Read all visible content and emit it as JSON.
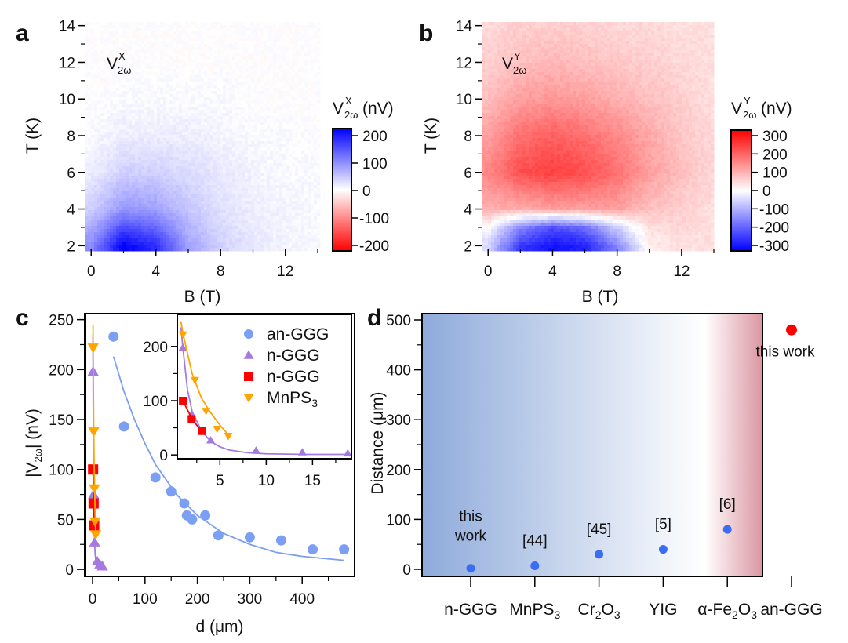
{
  "chart_data": [
    {
      "panel": "a",
      "type": "heatmap",
      "xlabel": "B (T)",
      "ylabel": "T (K)",
      "xlim": [
        -0.4,
        14
      ],
      "ylim": [
        1.8,
        14.2
      ],
      "xticks": [
        0,
        4,
        8,
        12
      ],
      "yticks": [
        2,
        4,
        6,
        8,
        10,
        12,
        14
      ],
      "annotation": {
        "base": "V",
        "sup": "X",
        "sub": "2ω"
      },
      "colorbar": {
        "base": "V",
        "sup": "X",
        "sub": "2ω",
        "unit": "(nV)",
        "ticks": [
          200,
          100,
          0,
          -100,
          -200
        ],
        "range": [
          -220,
          220
        ],
        "positive_color": "#0000ff",
        "negative_color": "#ff0000"
      },
      "grid": {
        "B": [
          0,
          2,
          4,
          6,
          8,
          10,
          12,
          14
        ],
        "T": [
          2,
          4,
          6,
          8,
          10,
          12,
          14
        ],
        "z": [
          [
            100,
            220,
            180,
            80,
            40,
            20,
            10,
            5
          ],
          [
            40,
            90,
            80,
            50,
            25,
            15,
            10,
            5
          ],
          [
            15,
            40,
            40,
            30,
            20,
            10,
            5,
            5
          ],
          [
            5,
            15,
            15,
            15,
            10,
            5,
            5,
            0
          ],
          [
            0,
            5,
            5,
            5,
            5,
            0,
            0,
            0
          ],
          [
            0,
            0,
            0,
            0,
            0,
            0,
            0,
            0
          ],
          [
            0,
            0,
            0,
            0,
            0,
            0,
            0,
            0
          ]
        ]
      }
    },
    {
      "panel": "b",
      "type": "heatmap",
      "xlabel": "B (T)",
      "ylabel": "T (K)",
      "xlim": [
        -0.4,
        14
      ],
      "ylim": [
        1.8,
        14.2
      ],
      "xticks": [
        0,
        4,
        8,
        12
      ],
      "yticks": [
        2,
        4,
        6,
        8,
        10,
        12,
        14
      ],
      "annotation": {
        "base": "V",
        "sup": "Y",
        "sub": "2ω"
      },
      "colorbar": {
        "base": "V",
        "sup": "Y",
        "sub": "2ω",
        "unit": "(nV)",
        "ticks": [
          300,
          200,
          100,
          0,
          -100,
          -200,
          -300
        ],
        "range": [
          -320,
          320
        ],
        "positive_color": "#ff0000",
        "negative_color": "#0000ff"
      },
      "grid": {
        "B": [
          0,
          2,
          4,
          6,
          8,
          10,
          12,
          14
        ],
        "T": [
          2,
          3,
          4,
          6,
          8,
          10,
          12,
          14
        ],
        "z": [
          [
            -50,
            -250,
            -300,
            -280,
            -150,
            20,
            40,
            40
          ],
          [
            0,
            -150,
            -220,
            -180,
            -60,
            40,
            50,
            40
          ],
          [
            100,
            100,
            120,
            120,
            120,
            80,
            60,
            40
          ],
          [
            150,
            220,
            240,
            220,
            180,
            120,
            80,
            50
          ],
          [
            120,
            180,
            200,
            180,
            150,
            110,
            70,
            50
          ],
          [
            80,
            120,
            130,
            120,
            100,
            80,
            60,
            40
          ],
          [
            60,
            80,
            90,
            80,
            70,
            60,
            50,
            40
          ],
          [
            50,
            60,
            60,
            60,
            50,
            50,
            40,
            40
          ]
        ]
      }
    },
    {
      "panel": "c",
      "type": "scatter",
      "xlabel": "d (μm)",
      "ylabel": {
        "pre": "|V",
        "sub": "2ω",
        "post": "| (nV)"
      },
      "xlim": [
        -15,
        500
      ],
      "ylim": [
        -7,
        256
      ],
      "xticks": [
        0,
        100,
        200,
        300,
        400
      ],
      "yticks": [
        0,
        50,
        100,
        150,
        200,
        250
      ],
      "legend_position": "inset top-right",
      "series": [
        {
          "name": "an-GGG",
          "marker": "circle",
          "color": "#7b9ff2",
          "x": [
            40,
            60,
            120,
            150,
            175,
            180,
            190,
            215,
            240,
            300,
            360,
            420,
            480
          ],
          "y": [
            233,
            143,
            92,
            78,
            66,
            54,
            50,
            54,
            34,
            32,
            29,
            20,
            20
          ],
          "fit": [
            [
              40,
              213
            ],
            [
              60,
              178
            ],
            [
              80,
              150
            ],
            [
              100,
              126
            ],
            [
              120,
              105
            ],
            [
              160,
              75
            ],
            [
              200,
              54
            ],
            [
              250,
              36
            ],
            [
              300,
              25
            ],
            [
              350,
              17
            ],
            [
              400,
              13
            ],
            [
              480,
              9
            ]
          ]
        },
        {
          "name": "n-GGG",
          "marker": "triangle-up",
          "color": "#a57ae0",
          "x": [
            1.0,
            1.95,
            4.0,
            8.9,
            13.9,
            18.8
          ],
          "y": [
            198,
            75,
            27,
            8,
            5,
            3
          ],
          "fit": [
            [
              0.8,
              235
            ],
            [
              1,
              198
            ],
            [
              1.5,
              120
            ],
            [
              2,
              80
            ],
            [
              3,
              45
            ],
            [
              4,
              25
            ],
            [
              5,
              15
            ],
            [
              6,
              9
            ],
            [
              8,
              4
            ],
            [
              10,
              2
            ],
            [
              14,
              1
            ],
            [
              19,
              1
            ]
          ]
        },
        {
          "name": "n-GGG",
          "marker": "square",
          "color": "#ff0000",
          "x": [
            1.0,
            1.95,
            3.05
          ],
          "y": [
            100,
            66,
            44
          ],
          "fit": [
            [
              1,
              100
            ],
            [
              2,
              66
            ],
            [
              3,
              44
            ]
          ]
        },
        {
          "name": "MnPS3",
          "marker": "triangle-down",
          "color": "#ffa500",
          "x": [
            1.0,
            2.3,
            3.5,
            4.7,
            5.9
          ],
          "y": [
            222,
            138,
            81,
            48,
            35
          ],
          "fit": [
            [
              0.8,
              245
            ],
            [
              1,
              225
            ],
            [
              2,
              150
            ],
            [
              3,
              105
            ],
            [
              4,
              78
            ],
            [
              5,
              55
            ],
            [
              6,
              35
            ]
          ]
        }
      ],
      "inset": {
        "xlim": [
          0.4,
          19.2
        ],
        "ylim": [
          -7,
          259
        ],
        "xticks": [
          5,
          10,
          15
        ],
        "yticks": [
          0,
          100,
          200
        ]
      }
    },
    {
      "panel": "d",
      "type": "scatter",
      "ylabel": "Distance (μm)",
      "ylim": [
        -10,
        517
      ],
      "yticks": [
        0,
        100,
        200,
        300,
        400,
        500
      ],
      "categories": [
        "n-GGG",
        "MnPS3",
        "Cr2O3",
        "YIG",
        "α-Fe2O3",
        "an-GGG"
      ],
      "values": [
        2,
        7,
        30,
        40,
        80,
        480
      ],
      "annotations": [
        "this work",
        "[44]",
        "[45]",
        "[5]",
        "[6]",
        "this work"
      ],
      "point_colors": [
        "#3a6cf5",
        "#3a6cf5",
        "#3a6cf5",
        "#3a6cf5",
        "#3a6cf5",
        "#ff0000"
      ],
      "background_gradient": [
        "#8eaadb",
        "#c6d4ec",
        "#ffffff",
        "#db96a2"
      ]
    }
  ],
  "panel_labels": [
    "a",
    "b",
    "c",
    "d"
  ]
}
